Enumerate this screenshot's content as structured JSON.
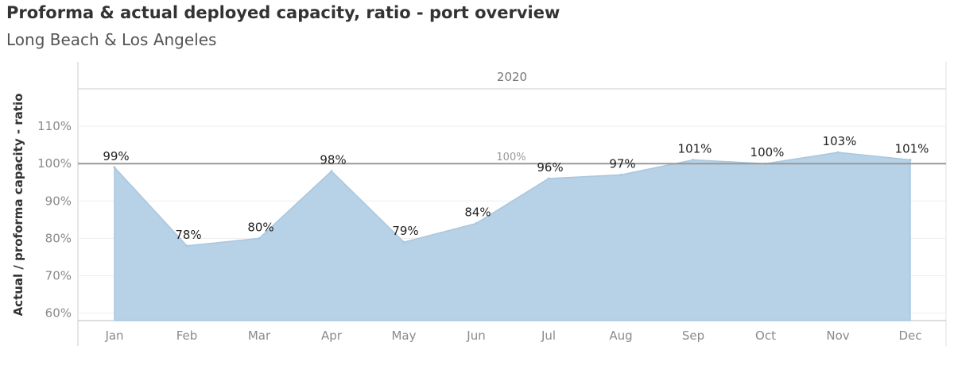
{
  "title": "Proforma & actual deployed capacity, ratio - port overview",
  "subtitle": "Long Beach & Los Angeles",
  "chart_data": {
    "type": "area",
    "panel_header": "2020",
    "categories": [
      "Jan",
      "Feb",
      "Mar",
      "Apr",
      "May",
      "Jun",
      "Jul",
      "Aug",
      "Sep",
      "Oct",
      "Nov",
      "Dec"
    ],
    "values": [
      99,
      78,
      80,
      98,
      79,
      84,
      96,
      97,
      101,
      100,
      103,
      101
    ],
    "data_labels": [
      "99%",
      "78%",
      "80%",
      "98%",
      "79%",
      "84%",
      "96%",
      "97%",
      "101%",
      "100%",
      "103%",
      "101%"
    ],
    "ylabel": "Actual / proforma capacity - ratio",
    "yticks": [
      60,
      70,
      80,
      90,
      100,
      110
    ],
    "ytick_labels": [
      "60%",
      "70%",
      "80%",
      "90%",
      "100%",
      "110%"
    ],
    "ylim": [
      58,
      120
    ],
    "reference_line": {
      "value": 100,
      "label": "100%"
    },
    "grid": true,
    "colors": {
      "fill": "#b7d1e6",
      "stroke": "#a9c7df",
      "reference": "#9a9a9a"
    }
  }
}
